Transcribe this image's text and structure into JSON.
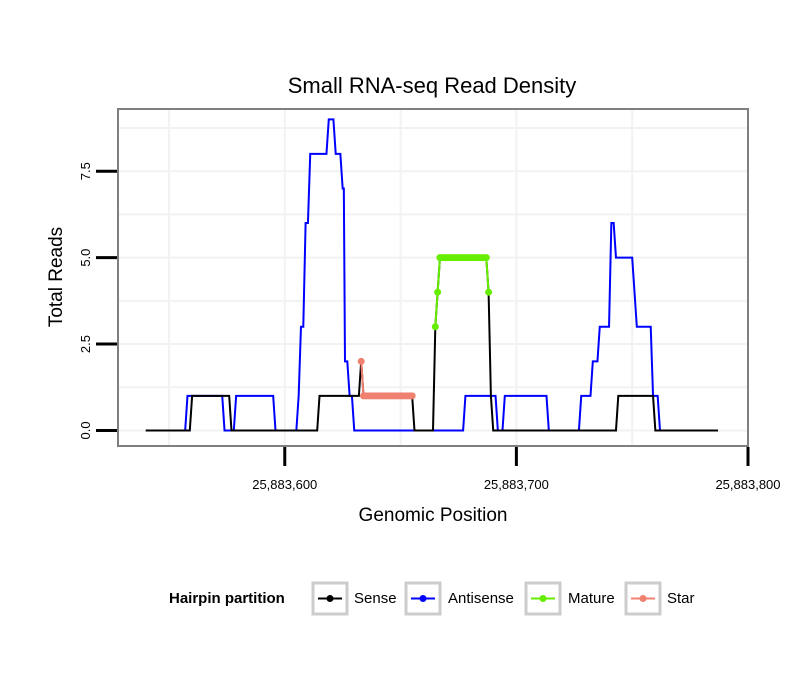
{
  "chart_data": {
    "type": "line",
    "title": "Small RNA-seq Read Density",
    "xlabel": "Genomic Position",
    "ylabel": "Total Reads",
    "xlim": [
      25883528,
      25883800
    ],
    "ylim": [
      -0.45,
      9.3
    ],
    "x_ticks": [
      25883600,
      25883700,
      25883800
    ],
    "x_tick_labels": [
      "25,883,600",
      "25,883,700",
      "25,883,800"
    ],
    "y_ticks": [
      0,
      2.5,
      5,
      7.5
    ],
    "y_tick_labels": [
      "0.0",
      "2.5",
      "5.0",
      "7.5"
    ],
    "grid": true,
    "legend": {
      "title": "Hairpin partition",
      "position": "bottom",
      "entries": [
        "Sense",
        "Antisense",
        "Mature",
        "Star"
      ]
    },
    "colors": {
      "Sense": "#000000",
      "Antisense": "#0000ff",
      "Mature": "#66ee00",
      "Star": "#f08070",
      "panel_border": "#7f7f7f",
      "grid": "#f2f2f2"
    },
    "series": [
      {
        "name": "Antisense",
        "style": "line",
        "points": [
          [
            25883540,
            0
          ],
          [
            25883557,
            0
          ],
          [
            25883558,
            1
          ],
          [
            25883573,
            1
          ],
          [
            25883574,
            0
          ],
          [
            25883578,
            0
          ],
          [
            25883579,
            1
          ],
          [
            25883595,
            1
          ],
          [
            25883596,
            0
          ],
          [
            25883605,
            0
          ],
          [
            25883606,
            1
          ],
          [
            25883607,
            3
          ],
          [
            25883608,
            3
          ],
          [
            25883609,
            6
          ],
          [
            25883610,
            6
          ],
          [
            25883611,
            8
          ],
          [
            25883618,
            8
          ],
          [
            25883619,
            9
          ],
          [
            25883621,
            9
          ],
          [
            25883622,
            8
          ],
          [
            25883624,
            8
          ],
          [
            25883625,
            7
          ],
          [
            25883625.5,
            7
          ],
          [
            25883626,
            2
          ],
          [
            25883627,
            2
          ],
          [
            25883628,
            1
          ],
          [
            25883629,
            1
          ],
          [
            25883630,
            0
          ],
          [
            25883677,
            0
          ],
          [
            25883678,
            1
          ],
          [
            25883691,
            1
          ],
          [
            25883692,
            0
          ],
          [
            25883694,
            0
          ],
          [
            25883695,
            1
          ],
          [
            25883713,
            1
          ],
          [
            25883714,
            0
          ],
          [
            25883727,
            0
          ],
          [
            25883728,
            1
          ],
          [
            25883732,
            1
          ],
          [
            25883733,
            2
          ],
          [
            25883735,
            2
          ],
          [
            25883736,
            3
          ],
          [
            25883740,
            3
          ],
          [
            25883741,
            6
          ],
          [
            25883742,
            6
          ],
          [
            25883743,
            5
          ],
          [
            25883750,
            5
          ],
          [
            25883751,
            4
          ],
          [
            25883752,
            3
          ],
          [
            25883758,
            3
          ],
          [
            25883759,
            1
          ],
          [
            25883761,
            1
          ],
          [
            25883762,
            0
          ],
          [
            25883787,
            0
          ]
        ]
      },
      {
        "name": "Sense",
        "style": "line",
        "points": [
          [
            25883540,
            0
          ],
          [
            25883559,
            0
          ],
          [
            25883560,
            1
          ],
          [
            25883576,
            1
          ],
          [
            25883577,
            0
          ],
          [
            25883614,
            0
          ],
          [
            25883615,
            1
          ],
          [
            25883632,
            1
          ],
          [
            25883633,
            2
          ],
          [
            25883634,
            1
          ],
          [
            25883655,
            1
          ],
          [
            25883656,
            0
          ],
          [
            25883664,
            0
          ],
          [
            25883665,
            3
          ],
          [
            25883666,
            4
          ],
          [
            25883667,
            5
          ],
          [
            25883687,
            5
          ],
          [
            25883688,
            4
          ],
          [
            25883689,
            1
          ],
          [
            25883690,
            0
          ],
          [
            25883743,
            0
          ],
          [
            25883744,
            1
          ],
          [
            25883759,
            1
          ],
          [
            25883760,
            0
          ],
          [
            25883787,
            0
          ]
        ]
      },
      {
        "name": "Mature",
        "style": "points",
        "points": [
          [
            25883665,
            3
          ],
          [
            25883666,
            4
          ],
          [
            25883667,
            5
          ],
          [
            25883668,
            5
          ],
          [
            25883669,
            5
          ],
          [
            25883670,
            5
          ],
          [
            25883671,
            5
          ],
          [
            25883672,
            5
          ],
          [
            25883673,
            5
          ],
          [
            25883674,
            5
          ],
          [
            25883675,
            5
          ],
          [
            25883676,
            5
          ],
          [
            25883677,
            5
          ],
          [
            25883678,
            5
          ],
          [
            25883679,
            5
          ],
          [
            25883680,
            5
          ],
          [
            25883681,
            5
          ],
          [
            25883682,
            5
          ],
          [
            25883683,
            5
          ],
          [
            25883684,
            5
          ],
          [
            25883685,
            5
          ],
          [
            25883686,
            5
          ],
          [
            25883687,
            5
          ],
          [
            25883688,
            4
          ]
        ]
      },
      {
        "name": "Star",
        "style": "points",
        "points": [
          [
            25883633,
            2
          ],
          [
            25883634,
            1
          ],
          [
            25883635,
            1
          ],
          [
            25883636,
            1
          ],
          [
            25883637,
            1
          ],
          [
            25883638,
            1
          ],
          [
            25883639,
            1
          ],
          [
            25883640,
            1
          ],
          [
            25883641,
            1
          ],
          [
            25883642,
            1
          ],
          [
            25883643,
            1
          ],
          [
            25883644,
            1
          ],
          [
            25883645,
            1
          ],
          [
            25883646,
            1
          ],
          [
            25883647,
            1
          ],
          [
            25883648,
            1
          ],
          [
            25883649,
            1
          ],
          [
            25883650,
            1
          ],
          [
            25883651,
            1
          ],
          [
            25883652,
            1
          ],
          [
            25883653,
            1
          ],
          [
            25883654,
            1
          ],
          [
            25883655,
            1
          ]
        ]
      }
    ]
  }
}
